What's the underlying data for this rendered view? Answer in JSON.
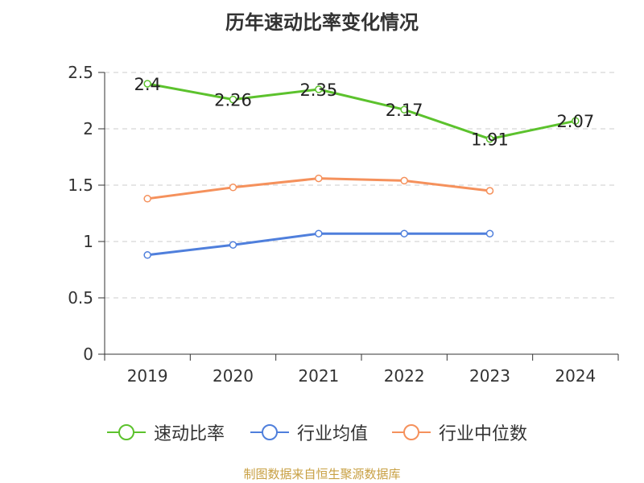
{
  "title": "历年速动比率变化情况",
  "source": "制图数据来自恒生聚源数据库",
  "colors": {
    "速动比率": "#5cc22d",
    "行业均值": "#4f7fdc",
    "行业中位数": "#f5915c",
    "grid": "#cccccc",
    "axis": "#333333"
  },
  "chart_data": {
    "type": "line",
    "title": "历年速动比率变化情况",
    "categories": [
      "2019",
      "2020",
      "2021",
      "2022",
      "2023",
      "2024"
    ],
    "ylim": [
      0,
      2.5
    ],
    "yticks": [
      "0",
      "0.5",
      "1",
      "1.5",
      "2",
      "2.5"
    ],
    "grid": true,
    "legend_position": "bottom",
    "series": [
      {
        "name": "速动比率",
        "values": [
          2.4,
          2.26,
          2.35,
          2.17,
          1.91,
          2.07
        ],
        "labels": [
          "2.4",
          "2.26",
          "2.35",
          "2.17",
          "1.91",
          "2.07"
        ]
      },
      {
        "name": "行业均值",
        "values": [
          0.88,
          0.97,
          1.07,
          1.07,
          1.07,
          null
        ]
      },
      {
        "name": "行业中位数",
        "values": [
          1.38,
          1.48,
          1.56,
          1.54,
          1.45,
          null
        ]
      }
    ]
  }
}
